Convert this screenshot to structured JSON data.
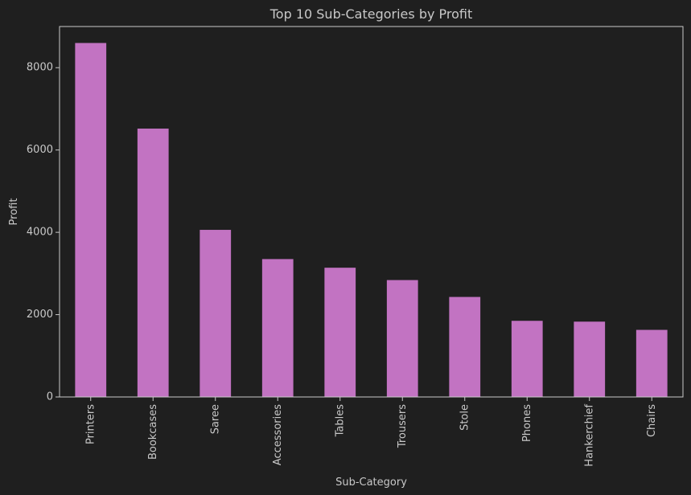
{
  "colors": {
    "background": "#1f1f1f",
    "bar": "#c273c2",
    "axis": "#c8c8c8"
  },
  "chart_data": {
    "type": "bar",
    "title": "Top 10 Sub-Categories by Profit",
    "xlabel": "Sub-Category",
    "ylabel": "Profit",
    "categories": [
      "Printers",
      "Bookcases",
      "Saree",
      "Accessories",
      "Tables",
      "Trousers",
      "Stole",
      "Phones",
      "Hankerchief",
      "Chairs"
    ],
    "values": [
      8600,
      6520,
      4060,
      3350,
      3140,
      2840,
      2430,
      1850,
      1830,
      1630
    ],
    "ylim": [
      0,
      9000
    ],
    "yticks": [
      0,
      2000,
      4000,
      6000,
      8000
    ],
    "grid": false,
    "legend": "none"
  }
}
